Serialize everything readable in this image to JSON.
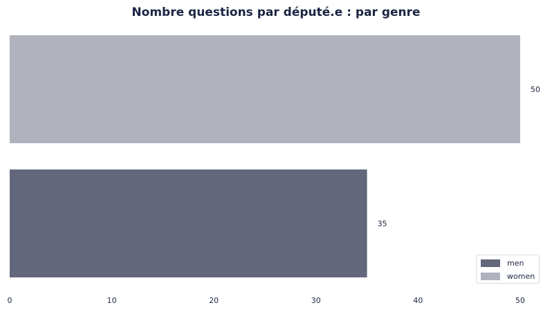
{
  "chart_data": {
    "type": "bar",
    "orientation": "horizontal",
    "title": "Nombre questions par député.e : par genre",
    "xlim": [
      0,
      50
    ],
    "xticks": [
      0,
      10,
      20,
      30,
      40,
      50
    ],
    "grid": false,
    "legend_position": "bottom-right",
    "series": [
      {
        "name": "women",
        "value": 50,
        "color": "#b0b2bd"
      },
      {
        "name": "men",
        "value": 35,
        "color": "#62677c"
      }
    ],
    "legend": [
      {
        "label": "men",
        "color": "#62677c"
      },
      {
        "label": "women",
        "color": "#b0b2bd"
      }
    ]
  }
}
